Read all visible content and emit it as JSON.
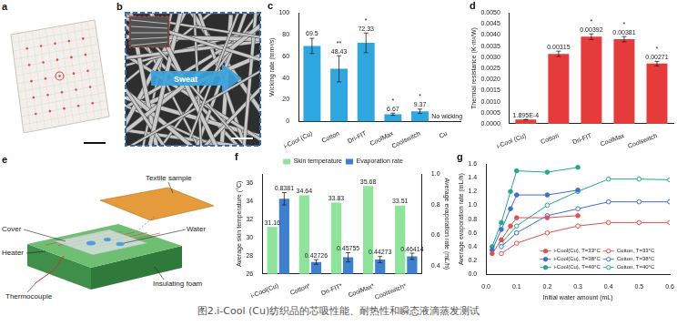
{
  "caption": "图2.i-Cool (Cu)纺织品的芯吸性能、耐热性和瞬态液滴蒸发测试",
  "panels": [
    {
      "panel": "a"
    },
    {
      "panel": "b",
      "texts": [
        "Sweat"
      ]
    },
    {
      "panel": "e",
      "texts": [
        "Cover",
        "Textile sample",
        "Heater",
        "Water",
        "Thermocouple",
        "Insulating foam"
      ]
    }
  ],
  "chart_data": [
    {
      "panel": "c",
      "type": "bar",
      "ylabel": "Wicking rate (mm²/s)",
      "categories": [
        "i-Cool (Cu)",
        "Cotton",
        "Dri-FIT",
        "CoolMax",
        "Coolswitch",
        "Cu"
      ],
      "values": [
        69.5,
        48.43,
        72.33,
        6.67,
        9.37,
        null
      ],
      "errors": [
        7,
        12,
        9,
        1,
        2,
        null
      ],
      "color": "#2ea7e0",
      "ylim": [
        0,
        100
      ],
      "yticks": [
        0,
        20,
        40,
        60,
        80,
        100
      ],
      "grid": false,
      "data_labels": true,
      "annotations": [
        {
          "category": "Cotton",
          "text": "**"
        },
        {
          "category": "Dri-FIT",
          "text": "*"
        },
        {
          "category": "CoolMax",
          "text": "*"
        },
        {
          "category": "Coolswitch",
          "text": "*"
        },
        {
          "category": "Cu",
          "text": "No wicking"
        }
      ]
    },
    {
      "panel": "d",
      "type": "bar",
      "ylabel": "Thermal resistance (K·m²/W)",
      "categories": [
        "i-Cool (Cu)",
        "Cotton",
        "Dri-FIT",
        "CoolMax",
        "Coolswitch"
      ],
      "values": [
        0.0001895,
        0.00315,
        0.00392,
        0.00381,
        0.00271
      ],
      "value_labels": [
        "1.895E-4",
        "0.00315",
        "0.00392",
        "0.00381",
        "0.00271"
      ],
      "errors": [
        1e-05,
        0.00012,
        0.00013,
        0.00012,
        0.0001
      ],
      "color": "#e63b3b",
      "ylim": [
        0,
        0.005
      ],
      "yticks": [
        {
          "value": 0,
          "label": "0.0000"
        },
        {
          "value": 0.0005,
          "label": "0.0005"
        },
        {
          "value": 0.001,
          "label": "0.0010"
        },
        {
          "value": 0.0015,
          "label": "0.0015"
        },
        {
          "value": 0.002,
          "label": "0.0020"
        },
        {
          "value": 0.0025,
          "label": "0.0025"
        },
        {
          "value": 0.003,
          "label": "0.0030"
        },
        {
          "value": 0.0035,
          "label": "0.0035"
        },
        {
          "value": 0.004,
          "label": "0.0040"
        },
        {
          "value": 0.0045,
          "label": "0.0045"
        },
        {
          "value": 0.005,
          "label": "0.0050"
        }
      ],
      "grid": false,
      "data_labels": true,
      "annotations": [
        {
          "category": "Dri-FIT",
          "text": "*"
        },
        {
          "category": "CoolMax",
          "text": "*"
        },
        {
          "category": "Coolswitch",
          "text": "*"
        }
      ]
    },
    {
      "panel": "f",
      "type": "bar",
      "categories": [
        "i-Cool(Cu)",
        "Cotton*",
        "Dri-FIT*",
        "CoolMax*",
        "Coolswitch*"
      ],
      "ylabel": "Average skin temperature (°C)",
      "y2label": "Average evaporation rate (mL/h)",
      "ylim": [
        26,
        37
      ],
      "yticks": [
        26,
        28,
        30,
        32,
        34,
        36
      ],
      "y2lim": [
        0.35,
        1.0
      ],
      "y2ticks": [
        0.4,
        0.6,
        0.8,
        {
          "value": 1.0,
          "label": "1.0"
        }
      ],
      "legend": "top",
      "grid": false,
      "data_labels": true,
      "series": [
        {
          "name": "Skin temperature",
          "color": "#8ee49a",
          "values": [
            31.16,
            34.64,
            33.83,
            35.68,
            33.51
          ]
        },
        {
          "name": "Evaporation rate",
          "color": "#3f7fcf",
          "axis": "y2",
          "values": [
            0.8381,
            0.42726,
            0.45755,
            0.44273,
            0.46414
          ],
          "errors": [
            0.04,
            0.015,
            0.03,
            0.02,
            0.02
          ]
        }
      ]
    },
    {
      "panel": "g",
      "type": "line",
      "xlabel": "Initial water amount (mL)",
      "ylabel": "Average evaporation rate (mL/h)",
      "xlim": [
        0,
        0.6
      ],
      "xticks": [
        {
          "value": 0,
          "label": "0.0"
        },
        0.1,
        0.2,
        0.3,
        0.4,
        0.5,
        0.6
      ],
      "ylim": [
        0,
        1.6
      ],
      "yticks": [
        {
          "value": 0,
          "label": "0.0"
        },
        0.2,
        0.4,
        0.6,
        0.8,
        {
          "value": 1,
          "label": "1.0"
        },
        1.2,
        1.4,
        1.6
      ],
      "legend": "lower right",
      "grid": false,
      "series": [
        {
          "name": "i-Cool(Cu), T=33°C",
          "color": "#e05050",
          "marker": "circle",
          "x": [
            0.02,
            0.05,
            0.08,
            0.1,
            0.2,
            0.3
          ],
          "values": [
            0.3,
            0.5,
            0.7,
            0.82,
            0.82,
            0.85
          ]
        },
        {
          "name": "i-Cool(Cu), T=38°C",
          "color": "#3a6fd0",
          "marker": "circle",
          "x": [
            0.02,
            0.05,
            0.08,
            0.1,
            0.2,
            0.3
          ],
          "values": [
            0.35,
            0.65,
            0.95,
            1.15,
            1.15,
            1.22
          ]
        },
        {
          "name": "i-Cool(Cu), T=40°C",
          "color": "#22a88a",
          "marker": "circle",
          "x": [
            0.02,
            0.05,
            0.08,
            0.1,
            0.2,
            0.3
          ],
          "values": [
            0.4,
            0.75,
            1.2,
            1.5,
            1.48,
            1.55
          ]
        },
        {
          "name": "Cotton, T=33°C",
          "color": "#e05050",
          "marker": "circle-open",
          "x": [
            0.05,
            0.1,
            0.2,
            0.3,
            0.4,
            0.5,
            0.6
          ],
          "values": [
            0.3,
            0.45,
            0.6,
            0.7,
            0.75,
            0.75,
            0.75
          ]
        },
        {
          "name": "Cotton, T=38°C",
          "color": "#3a6fd0",
          "marker": "circle-open",
          "x": [
            0.05,
            0.1,
            0.2,
            0.3,
            0.4,
            0.5,
            0.6
          ],
          "values": [
            0.4,
            0.6,
            0.85,
            0.95,
            1.05,
            1.05,
            1.05
          ]
        },
        {
          "name": "Cotton, T=40°C",
          "color": "#22a88a",
          "marker": "circle-open",
          "x": [
            0.05,
            0.1,
            0.2,
            0.3,
            0.4,
            0.5,
            0.6
          ],
          "values": [
            0.45,
            0.7,
            1.0,
            1.2,
            1.38,
            1.38,
            1.37
          ]
        }
      ]
    }
  ]
}
